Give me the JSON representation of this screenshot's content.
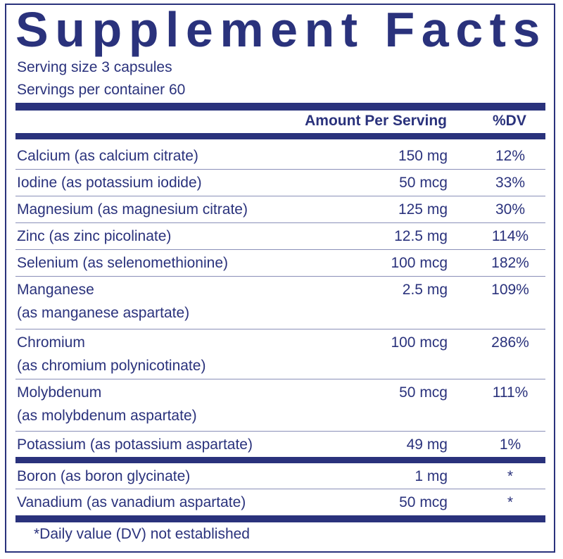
{
  "title": "Supplement Facts",
  "serving_size": "Serving size  3 capsules",
  "servings_per_container": "Servings per container  60",
  "header": {
    "amount": "Amount Per Serving",
    "dv": "%DV"
  },
  "rows": [
    {
      "name": [
        "Calcium (as calcium citrate)"
      ],
      "amount": "150 mg",
      "dv": "12%"
    },
    {
      "name": [
        "Iodine (as potassium iodide)"
      ],
      "amount": "50 mcg",
      "dv": "33%"
    },
    {
      "name": [
        "Magnesium (as magnesium citrate)"
      ],
      "amount": "125 mg",
      "dv": "30%"
    },
    {
      "name": [
        "Zinc (as zinc picolinate)"
      ],
      "amount": "12.5 mg",
      "dv": "114%"
    },
    {
      "name": [
        "Selenium (as selenomethionine)"
      ],
      "amount": "100 mcg",
      "dv": "182%"
    },
    {
      "name": [
        "Manganese",
        "(as manganese aspartate)"
      ],
      "amount": "2.5 mg",
      "dv": "109%"
    },
    {
      "name": [
        "Chromium",
        "(as chromium polynicotinate)"
      ],
      "amount": "100 mcg",
      "dv": "286%"
    },
    {
      "name": [
        "Molybdenum",
        "(as molybdenum aspartate)"
      ],
      "amount": "50 mcg",
      "dv": "111%"
    },
    {
      "name": [
        "Potassium (as potassium aspartate)"
      ],
      "amount": "49 mg",
      "dv": "1%"
    },
    {
      "name": [
        "Boron (as boron glycinate)"
      ],
      "amount": "1 mg",
      "dv": "*"
    },
    {
      "name": [
        "Vanadium (as vanadium aspartate)"
      ],
      "amount": "50 mcg",
      "dv": "*"
    }
  ],
  "footnote": "*Daily value (DV) not established",
  "colors": {
    "ink": "#2a327c"
  }
}
